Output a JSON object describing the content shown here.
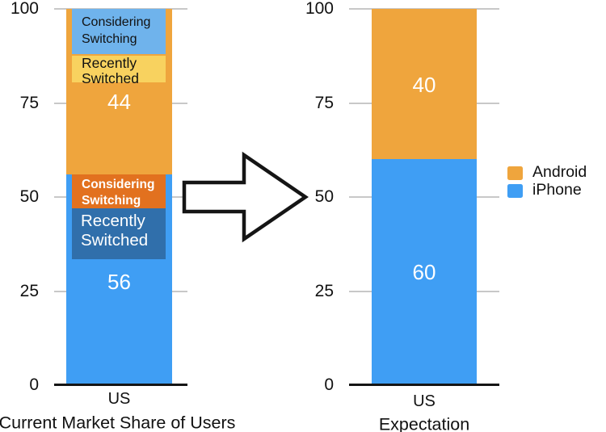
{
  "page": {
    "background": "#ffffff"
  },
  "colors": {
    "android_orange": "#efa53d",
    "iphone_blue": "#3f9ef4",
    "annotation_light_blue": "#6fb3ec",
    "annotation_yellow": "#f8d25f",
    "annotation_dark_orange": "#e2711f",
    "annotation_dark_blue": "#306fab",
    "gridline_gray": "#c8c8c8",
    "axis_black": "#151515",
    "value_label_white": "#ffffff"
  },
  "legend": {
    "items": [
      {
        "label": "Android",
        "color": "#efa53d"
      },
      {
        "label": "iPhone",
        "color": "#3f9ef4"
      }
    ]
  },
  "chart_data": [
    {
      "type": "bar",
      "stacked": true,
      "title": "Current Market Share of Users",
      "categories": [
        "US"
      ],
      "ylim": [
        0,
        100
      ],
      "yticks": [
        0,
        25,
        50,
        75,
        100
      ],
      "grid": true,
      "series": [
        {
          "name": "iPhone",
          "values": [
            56
          ],
          "color": "#3f9ef4",
          "label_color": "#ffffff"
        },
        {
          "name": "Android",
          "values": [
            44
          ],
          "color": "#efa53d",
          "label_color": "#ffffff"
        }
      ],
      "annotations": [
        {
          "segment": "Android",
          "text": "Considering Switching",
          "span": [
            88,
            100
          ],
          "bg": "#6fb3ec",
          "color": "#111111"
        },
        {
          "segment": "Android",
          "text": "Recently Switched",
          "span": [
            80.5,
            87.5
          ],
          "bg": "#f8d25f",
          "color": "#111111"
        },
        {
          "segment": "iPhone",
          "text": "Considering Switching",
          "span": [
            47,
            56
          ],
          "bg": "#e2711f",
          "color": "#ffffff"
        },
        {
          "segment": "iPhone",
          "text": "Recently Switched",
          "span": [
            33.5,
            47
          ],
          "bg": "#306fab",
          "color": "#ffffff"
        }
      ]
    },
    {
      "type": "bar",
      "stacked": true,
      "title": "Expectation",
      "categories": [
        "US"
      ],
      "ylim": [
        0,
        100
      ],
      "yticks": [
        0,
        25,
        50,
        75,
        100
      ],
      "grid": true,
      "legend_position": "right",
      "series": [
        {
          "name": "iPhone",
          "values": [
            60
          ],
          "color": "#3f9ef4",
          "label_color": "#ffffff"
        },
        {
          "name": "Android",
          "values": [
            40
          ],
          "color": "#efa53d",
          "label_color": "#ffffff"
        }
      ]
    }
  ]
}
